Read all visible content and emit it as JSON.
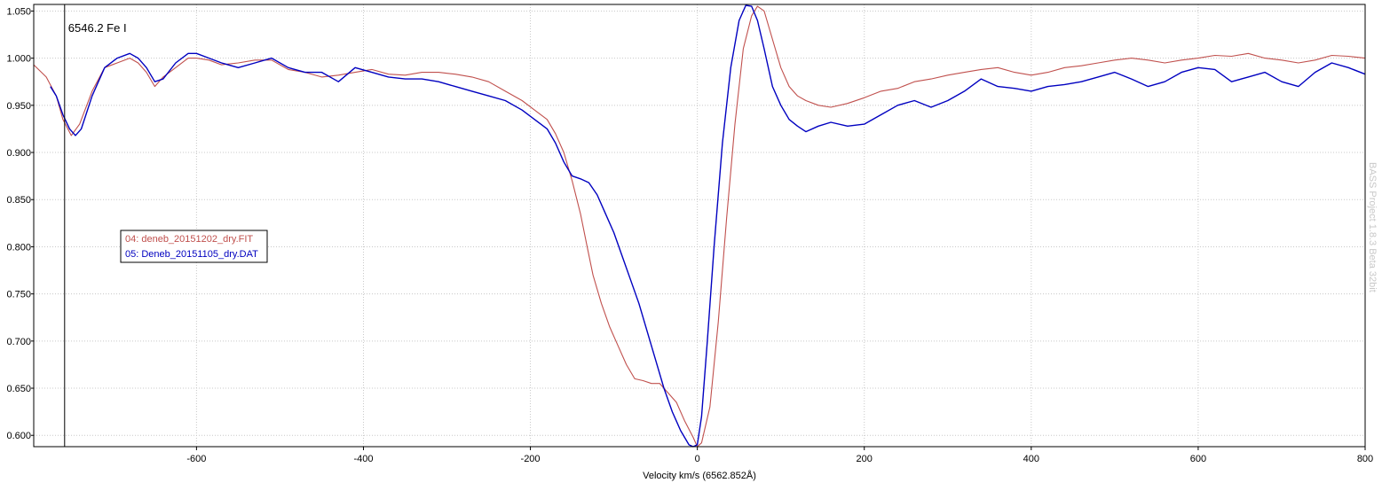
{
  "chart_data": {
    "type": "line",
    "xlabel": "Velocity km/s (6562.852Å)",
    "ylabel": "",
    "xlim": [
      -795,
      800
    ],
    "ylim": [
      0.588,
      1.057
    ],
    "x_ticks": [
      -600,
      -400,
      -200,
      0,
      200,
      400,
      600,
      800
    ],
    "y_ticks": [
      0.6,
      0.65,
      0.7,
      0.75,
      0.8,
      0.85,
      0.9,
      0.95,
      1.0,
      1.05
    ],
    "x_tick_labels": [
      "-600",
      "-400",
      "-200",
      "0",
      "200",
      "400",
      "600",
      "800"
    ],
    "y_tick_labels": [
      "0.600",
      "0.650",
      "0.700",
      "0.750",
      "0.800",
      "0.850",
      "0.900",
      "0.950",
      "1.000",
      "1.050"
    ],
    "grid": true,
    "legend_position": "left-middle",
    "annotations": [
      {
        "text": "6546.2 Fe I",
        "x": -758
      }
    ],
    "watermark": "BASS Project 1.8.3 Beta 32bit",
    "series": [
      {
        "name": "04: deneb_20151202_dry.FIT",
        "color": "#c0504d",
        "x": [
          -795,
          -780,
          -768,
          -760,
          -750,
          -740,
          -725,
          -710,
          -695,
          -680,
          -670,
          -660,
          -650,
          -640,
          -625,
          -610,
          -600,
          -585,
          -570,
          -550,
          -530,
          -510,
          -490,
          -470,
          -450,
          -430,
          -410,
          -390,
          -370,
          -350,
          -330,
          -310,
          -290,
          -270,
          -250,
          -230,
          -210,
          -195,
          -180,
          -170,
          -160,
          -150,
          -140,
          -132,
          -125,
          -115,
          -105,
          -95,
          -85,
          -75,
          -65,
          -55,
          -45,
          -35,
          -25,
          -15,
          -5,
          0,
          5,
          15,
          25,
          35,
          45,
          55,
          65,
          72,
          80,
          90,
          100,
          110,
          120,
          130,
          145,
          160,
          180,
          200,
          220,
          240,
          260,
          280,
          300,
          320,
          340,
          360,
          380,
          400,
          420,
          440,
          460,
          480,
          500,
          520,
          540,
          560,
          580,
          600,
          620,
          640,
          660,
          680,
          700,
          720,
          740,
          760,
          780,
          800
        ],
        "values": [
          0.993,
          0.98,
          0.96,
          0.935,
          0.918,
          0.93,
          0.965,
          0.99,
          0.995,
          1.0,
          0.995,
          0.985,
          0.97,
          0.98,
          0.99,
          1.0,
          1.0,
          0.998,
          0.993,
          0.995,
          0.998,
          0.998,
          0.988,
          0.985,
          0.98,
          0.982,
          0.985,
          0.988,
          0.983,
          0.982,
          0.985,
          0.985,
          0.983,
          0.98,
          0.975,
          0.965,
          0.955,
          0.945,
          0.935,
          0.92,
          0.9,
          0.87,
          0.835,
          0.8,
          0.77,
          0.74,
          0.715,
          0.695,
          0.675,
          0.66,
          0.658,
          0.655,
          0.655,
          0.645,
          0.635,
          0.615,
          0.598,
          0.588,
          0.592,
          0.63,
          0.72,
          0.83,
          0.93,
          1.01,
          1.045,
          1.055,
          1.05,
          1.02,
          0.99,
          0.97,
          0.96,
          0.955,
          0.95,
          0.948,
          0.952,
          0.958,
          0.965,
          0.968,
          0.975,
          0.978,
          0.982,
          0.985,
          0.988,
          0.99,
          0.985,
          0.982,
          0.985,
          0.99,
          0.992,
          0.995,
          0.998,
          1.0,
          0.998,
          0.995,
          0.998,
          1.0,
          1.003,
          1.002,
          1.005,
          1.0,
          0.998,
          0.995,
          0.998,
          1.003,
          1.002,
          1.0
        ]
      },
      {
        "name": "05: Deneb_20151105_dry.DAT",
        "color": "#0000c0",
        "x": [
          -775,
          -768,
          -760,
          -752,
          -745,
          -738,
          -725,
          -710,
          -695,
          -680,
          -670,
          -660,
          -650,
          -640,
          -625,
          -610,
          -600,
          -585,
          -570,
          -550,
          -530,
          -510,
          -490,
          -470,
          -450,
          -430,
          -410,
          -390,
          -370,
          -350,
          -330,
          -310,
          -290,
          -270,
          -250,
          -230,
          -210,
          -195,
          -180,
          -170,
          -160,
          -150,
          -140,
          -130,
          -120,
          -110,
          -100,
          -90,
          -80,
          -70,
          -60,
          -50,
          -40,
          -30,
          -20,
          -10,
          -5,
          0,
          5,
          12,
          20,
          30,
          40,
          50,
          58,
          65,
          72,
          80,
          90,
          100,
          110,
          120,
          130,
          145,
          160,
          180,
          200,
          220,
          240,
          260,
          280,
          300,
          320,
          340,
          360,
          380,
          400,
          420,
          440,
          460,
          480,
          500,
          520,
          540,
          560,
          580,
          600,
          620,
          640,
          660,
          680,
          700,
          720,
          740,
          760,
          780,
          800
        ],
        "values": [
          0.97,
          0.96,
          0.94,
          0.925,
          0.918,
          0.925,
          0.96,
          0.99,
          1.0,
          1.005,
          1.0,
          0.99,
          0.975,
          0.978,
          0.995,
          1.005,
          1.005,
          1.0,
          0.995,
          0.99,
          0.995,
          1.0,
          0.99,
          0.985,
          0.985,
          0.975,
          0.99,
          0.985,
          0.98,
          0.978,
          0.978,
          0.975,
          0.97,
          0.965,
          0.96,
          0.955,
          0.945,
          0.935,
          0.925,
          0.91,
          0.89,
          0.875,
          0.872,
          0.868,
          0.855,
          0.835,
          0.815,
          0.79,
          0.765,
          0.74,
          0.71,
          0.68,
          0.65,
          0.625,
          0.605,
          0.59,
          0.588,
          0.59,
          0.62,
          0.7,
          0.8,
          0.91,
          0.99,
          1.04,
          1.056,
          1.055,
          1.04,
          1.01,
          0.97,
          0.95,
          0.935,
          0.928,
          0.922,
          0.928,
          0.932,
          0.928,
          0.93,
          0.94,
          0.95,
          0.955,
          0.948,
          0.955,
          0.965,
          0.978,
          0.97,
          0.968,
          0.965,
          0.97,
          0.972,
          0.975,
          0.98,
          0.985,
          0.978,
          0.97,
          0.975,
          0.985,
          0.99,
          0.988,
          0.975,
          0.98,
          0.985,
          0.975,
          0.97,
          0.985,
          0.995,
          0.99,
          0.983
        ]
      }
    ]
  }
}
